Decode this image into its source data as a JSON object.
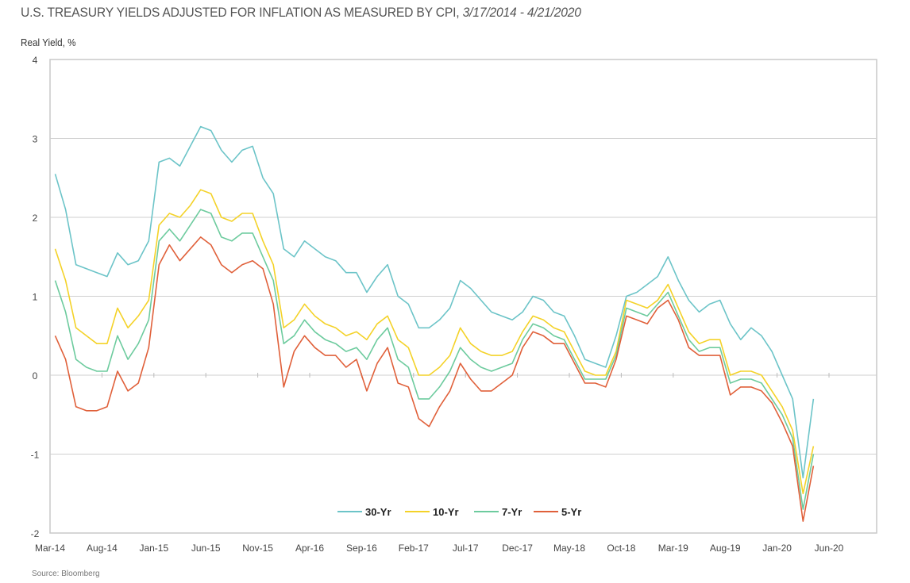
{
  "title": {
    "main": "U.S. TREASURY YIELDS ADJUSTED FOR INFLATION AS MEASURED BY CPI, ",
    "range": "3/17/2014 - 4/21/2020"
  },
  "source": "Source: Bloomberg",
  "chart_data": {
    "type": "line",
    "title": "U.S. TREASURY YIELDS ADJUSTED FOR INFLATION AS MEASURED BY CPI, 3/17/2014 - 4/21/2020",
    "ylabel": "Real Yield, %",
    "xlabel": "",
    "ylim": [
      -2,
      4
    ],
    "yticks": [
      "-2",
      "-1",
      "0",
      "1",
      "2",
      "3",
      "4"
    ],
    "xticks": [
      "Mar-14",
      "Aug-14",
      "Jan-15",
      "Jun-15",
      "Nov-15",
      "Apr-16",
      "Sep-16",
      "Feb-17",
      "Jul-17",
      "Dec-17",
      "May-18",
      "Oct-18",
      "Mar-19",
      "Aug-19",
      "Jan-20",
      "Jun-20"
    ],
    "x_start_month": "2014-03",
    "x_step": "1 month",
    "grid": true,
    "legend": "bottom-center",
    "series": [
      {
        "name": "30-Yr",
        "color": "#6cc4c8",
        "values": [
          2.55,
          2.1,
          1.4,
          1.35,
          1.3,
          1.25,
          1.55,
          1.4,
          1.45,
          1.7,
          2.7,
          2.75,
          2.65,
          2.9,
          3.15,
          3.1,
          2.85,
          2.7,
          2.85,
          2.9,
          2.5,
          2.3,
          1.6,
          1.5,
          1.7,
          1.6,
          1.5,
          1.45,
          1.3,
          1.3,
          1.05,
          1.25,
          1.4,
          1.0,
          0.9,
          0.6,
          0.6,
          0.7,
          0.85,
          1.2,
          1.1,
          0.95,
          0.8,
          0.75,
          0.7,
          0.8,
          1.0,
          0.95,
          0.8,
          0.75,
          0.5,
          0.2,
          0.15,
          0.1,
          0.5,
          1.0,
          1.05,
          1.15,
          1.25,
          1.5,
          1.2,
          0.95,
          0.8,
          0.9,
          0.95,
          0.65,
          0.45,
          0.6,
          0.5,
          0.3,
          0.0,
          -0.3,
          -1.3,
          -0.3
        ]
      },
      {
        "name": "10-Yr",
        "color": "#f4d228",
        "values": [
          1.6,
          1.2,
          0.6,
          0.5,
          0.4,
          0.4,
          0.85,
          0.6,
          0.75,
          0.95,
          1.9,
          2.05,
          2.0,
          2.15,
          2.35,
          2.3,
          2.0,
          1.95,
          2.05,
          2.05,
          1.7,
          1.4,
          0.6,
          0.7,
          0.9,
          0.75,
          0.65,
          0.6,
          0.5,
          0.55,
          0.45,
          0.65,
          0.75,
          0.45,
          0.35,
          0.0,
          0.0,
          0.1,
          0.25,
          0.6,
          0.4,
          0.3,
          0.25,
          0.25,
          0.3,
          0.55,
          0.75,
          0.7,
          0.6,
          0.55,
          0.3,
          0.05,
          0.0,
          0.0,
          0.3,
          0.95,
          0.9,
          0.85,
          0.95,
          1.15,
          0.85,
          0.55,
          0.4,
          0.45,
          0.45,
          0.0,
          0.05,
          0.05,
          0.0,
          -0.2,
          -0.4,
          -0.7,
          -1.5,
          -0.9
        ]
      },
      {
        "name": "7-Yr",
        "color": "#6dcb9e",
        "values": [
          1.2,
          0.8,
          0.2,
          0.1,
          0.05,
          0.05,
          0.5,
          0.2,
          0.4,
          0.7,
          1.7,
          1.85,
          1.7,
          1.9,
          2.1,
          2.05,
          1.75,
          1.7,
          1.8,
          1.8,
          1.5,
          1.2,
          0.4,
          0.5,
          0.7,
          0.55,
          0.45,
          0.4,
          0.3,
          0.35,
          0.2,
          0.45,
          0.6,
          0.2,
          0.1,
          -0.3,
          -0.3,
          -0.15,
          0.05,
          0.35,
          0.2,
          0.1,
          0.05,
          0.1,
          0.15,
          0.45,
          0.65,
          0.6,
          0.5,
          0.45,
          0.2,
          -0.05,
          -0.05,
          -0.05,
          0.25,
          0.85,
          0.8,
          0.75,
          0.9,
          1.05,
          0.75,
          0.45,
          0.3,
          0.35,
          0.35,
          -0.1,
          -0.05,
          -0.05,
          -0.1,
          -0.3,
          -0.5,
          -0.8,
          -1.7,
          -1.0
        ]
      },
      {
        "name": "5-Yr",
        "color": "#e0603a",
        "values": [
          0.5,
          0.2,
          -0.4,
          -0.45,
          -0.45,
          -0.4,
          0.05,
          -0.2,
          -0.1,
          0.35,
          1.4,
          1.65,
          1.45,
          1.6,
          1.75,
          1.65,
          1.4,
          1.3,
          1.4,
          1.45,
          1.35,
          0.9,
          -0.15,
          0.3,
          0.5,
          0.35,
          0.25,
          0.25,
          0.1,
          0.2,
          -0.2,
          0.15,
          0.35,
          -0.1,
          -0.15,
          -0.55,
          -0.65,
          -0.4,
          -0.2,
          0.15,
          -0.05,
          -0.2,
          -0.2,
          -0.1,
          0.0,
          0.35,
          0.55,
          0.5,
          0.4,
          0.4,
          0.15,
          -0.1,
          -0.1,
          -0.15,
          0.2,
          0.75,
          0.7,
          0.65,
          0.85,
          0.95,
          0.7,
          0.35,
          0.25,
          0.25,
          0.25,
          -0.25,
          -0.15,
          -0.15,
          -0.2,
          -0.35,
          -0.6,
          -0.9,
          -1.85,
          -1.15
        ]
      }
    ]
  }
}
